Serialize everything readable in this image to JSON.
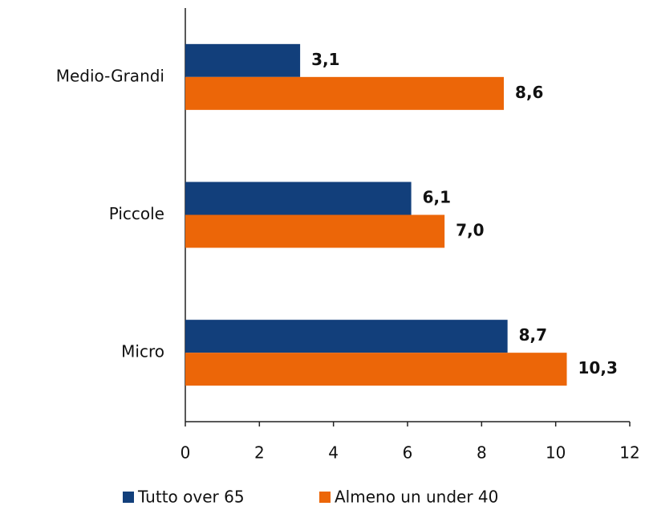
{
  "chart_data": {
    "type": "bar",
    "orientation": "horizontal",
    "categories": [
      "Medio-Grandi",
      "Piccole",
      "Micro"
    ],
    "series": [
      {
        "name": "Tutto over 65",
        "color": "#123f7b",
        "values": [
          3.1,
          6.1,
          8.7
        ],
        "value_labels": [
          "3,1",
          "6,1",
          "8,7"
        ]
      },
      {
        "name": "Almeno un under 40",
        "color": "#ec6608",
        "values": [
          8.6,
          7.0,
          10.3
        ],
        "value_labels": [
          "8,6",
          "7,0",
          "10,3"
        ]
      }
    ],
    "xlim": [
      0,
      12
    ],
    "xticks": [
      0,
      2,
      4,
      6,
      8,
      10,
      12
    ],
    "grid": false,
    "legend": "bottom"
  }
}
